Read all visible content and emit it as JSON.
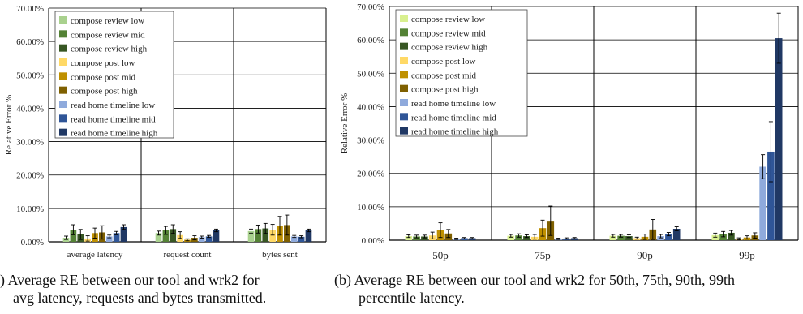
{
  "chart_data": [
    {
      "type": "bar",
      "ylabel": "Relative Error %",
      "ylim": [
        0,
        70
      ],
      "yticks": [
        "0.00%",
        "10.00%",
        "20.00%",
        "30.00%",
        "40.00%",
        "50.00%",
        "60.00%",
        "70.00%"
      ],
      "grid": true,
      "legend_position": "top-left",
      "categories": [
        "average latency",
        "request count",
        "bytes sent"
      ],
      "series": [
        {
          "name": "compose review low",
          "color": "#a9d18e",
          "values": [
            1.2,
            2.6,
            3.2
          ],
          "errors": [
            0.5,
            0.6,
            0.6
          ]
        },
        {
          "name": "compose review mid",
          "color": "#548235",
          "values": [
            3.6,
            3.4,
            3.8
          ],
          "errors": [
            1.5,
            1.2,
            1.2
          ]
        },
        {
          "name": "compose review high",
          "color": "#375623",
          "values": [
            2.2,
            3.8,
            4.0
          ],
          "errors": [
            1.5,
            1.3,
            1.5
          ]
        },
        {
          "name": "compose post low",
          "color": "#ffd966",
          "values": [
            1.0,
            2.0,
            3.6
          ],
          "errors": [
            0.8,
            1.0,
            1.6
          ]
        },
        {
          "name": "compose post mid",
          "color": "#bf9000",
          "values": [
            2.6,
            0.6,
            4.8
          ],
          "errors": [
            1.5,
            0.3,
            2.8
          ]
        },
        {
          "name": "compose post high",
          "color": "#7f6000",
          "values": [
            2.8,
            1.2,
            5.0
          ],
          "errors": [
            2.0,
            0.6,
            3.0
          ]
        },
        {
          "name": "read home timeline low",
          "color": "#8faadc",
          "values": [
            1.6,
            1.4,
            1.6
          ],
          "errors": [
            0.4,
            0.3,
            0.3
          ]
        },
        {
          "name": "read home timeline mid",
          "color": "#2f5597",
          "values": [
            2.6,
            1.6,
            1.5
          ],
          "errors": [
            0.5,
            0.3,
            0.3
          ]
        },
        {
          "name": "read home timeline high",
          "color": "#203864",
          "values": [
            4.4,
            3.4,
            3.4
          ],
          "errors": [
            0.7,
            0.4,
            0.4
          ]
        }
      ]
    },
    {
      "type": "bar",
      "ylabel": "Relative Error %",
      "ylim": [
        0,
        70
      ],
      "yticks": [
        "0.00%",
        "10.00%",
        "20.00%",
        "30.00%",
        "40.00%",
        "50.00%",
        "60.00%",
        "70.00%"
      ],
      "grid": true,
      "legend_position": "top-left",
      "categories": [
        "50p",
        "75p",
        "90p",
        "99p"
      ],
      "series": [
        {
          "name": "compose review low",
          "color": "#d9f08f",
          "values": [
            1.2,
            1.3,
            1.3,
            1.5
          ],
          "errors": [
            0.4,
            0.4,
            0.4,
            0.6
          ]
        },
        {
          "name": "compose review mid",
          "color": "#548235",
          "values": [
            1.1,
            1.4,
            1.3,
            1.8
          ],
          "errors": [
            0.4,
            0.5,
            0.4,
            0.8
          ]
        },
        {
          "name": "compose review high",
          "color": "#375623",
          "values": [
            1.1,
            1.2,
            1.2,
            2.2
          ],
          "errors": [
            0.4,
            0.4,
            0.4,
            0.7
          ]
        },
        {
          "name": "compose post low",
          "color": "#ffd966",
          "values": [
            1.4,
            1.0,
            0.6,
            0.4
          ],
          "errors": [
            1.0,
            0.7,
            0.3,
            0.3
          ]
        },
        {
          "name": "compose post mid",
          "color": "#bf9000",
          "values": [
            3.0,
            3.6,
            1.0,
            0.8
          ],
          "errors": [
            2.2,
            2.4,
            0.8,
            0.5
          ]
        },
        {
          "name": "compose post high",
          "color": "#7f6000",
          "values": [
            2.0,
            5.8,
            3.2,
            1.4
          ],
          "errors": [
            1.2,
            4.4,
            3.0,
            0.8
          ]
        },
        {
          "name": "read home timeline low",
          "color": "#8faadc",
          "values": [
            0.4,
            0.4,
            1.2,
            22.0
          ],
          "errors": [
            0.2,
            0.2,
            0.5,
            3.6
          ]
        },
        {
          "name": "read home timeline mid",
          "color": "#2f5597",
          "values": [
            0.6,
            0.5,
            1.8,
            26.5
          ],
          "errors": [
            0.2,
            0.2,
            0.5,
            9.0
          ]
        },
        {
          "name": "read home timeline high",
          "color": "#203864",
          "values": [
            0.6,
            0.6,
            3.4,
            60.5
          ],
          "errors": [
            0.2,
            0.2,
            0.6,
            7.5
          ]
        }
      ]
    }
  ],
  "captions": {
    "left_line1": ") Average RE between our tool and wrk2 for",
    "left_line2": "avg latency, requests and bytes transmitted.",
    "right_line1": "(b) Average RE between our tool and wrk2 for 50th, 75th, 90th, 99th",
    "right_line2": "percentile latency."
  }
}
